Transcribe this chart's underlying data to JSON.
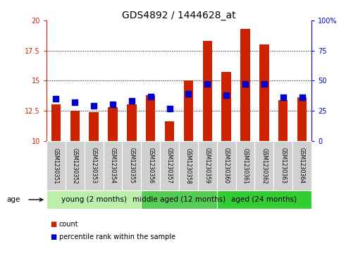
{
  "title": "GDS4892 / 1444628_at",
  "samples": [
    "GSM1230351",
    "GSM1230352",
    "GSM1230353",
    "GSM1230354",
    "GSM1230355",
    "GSM1230356",
    "GSM1230357",
    "GSM1230358",
    "GSM1230359",
    "GSM1230360",
    "GSM1230361",
    "GSM1230362",
    "GSM1230363",
    "GSM1230364"
  ],
  "count_values": [
    13.0,
    12.5,
    12.4,
    12.8,
    13.0,
    13.8,
    11.6,
    15.0,
    18.3,
    15.7,
    19.3,
    18.0,
    13.4,
    13.6
  ],
  "percentile_values": [
    35,
    32,
    29,
    30,
    33,
    37,
    27,
    39,
    47,
    38,
    47,
    47,
    36,
    36
  ],
  "ylim_left": [
    10,
    20
  ],
  "ylim_right": [
    0,
    100
  ],
  "yticks_left": [
    10,
    12.5,
    15,
    17.5,
    20
  ],
  "yticks_right": [
    0,
    25,
    50,
    75,
    100
  ],
  "bar_color": "#cc2200",
  "dot_color": "#0000cc",
  "background_plot": "#ffffff",
  "background_xticklabels": "#d0d0d0",
  "grid_color": "#000000",
  "groups": [
    {
      "label": "young (2 months)",
      "start": 0,
      "end": 5,
      "color": "#bbeeaa"
    },
    {
      "label": "middle aged (12 months)",
      "start": 5,
      "end": 9,
      "color": "#55cc55"
    },
    {
      "label": "aged (24 months)",
      "start": 9,
      "end": 14,
      "color": "#33cc33"
    }
  ],
  "group_row_label": "age",
  "legend_count_label": "count",
  "legend_percentile_label": "percentile rank within the sample",
  "bar_bottom": 10,
  "bar_width": 0.5,
  "dot_size": 28,
  "title_fontsize": 10,
  "tick_fontsize": 7,
  "sample_fontsize": 5.5,
  "legend_fontsize": 7,
  "group_fontsize": 7.5
}
